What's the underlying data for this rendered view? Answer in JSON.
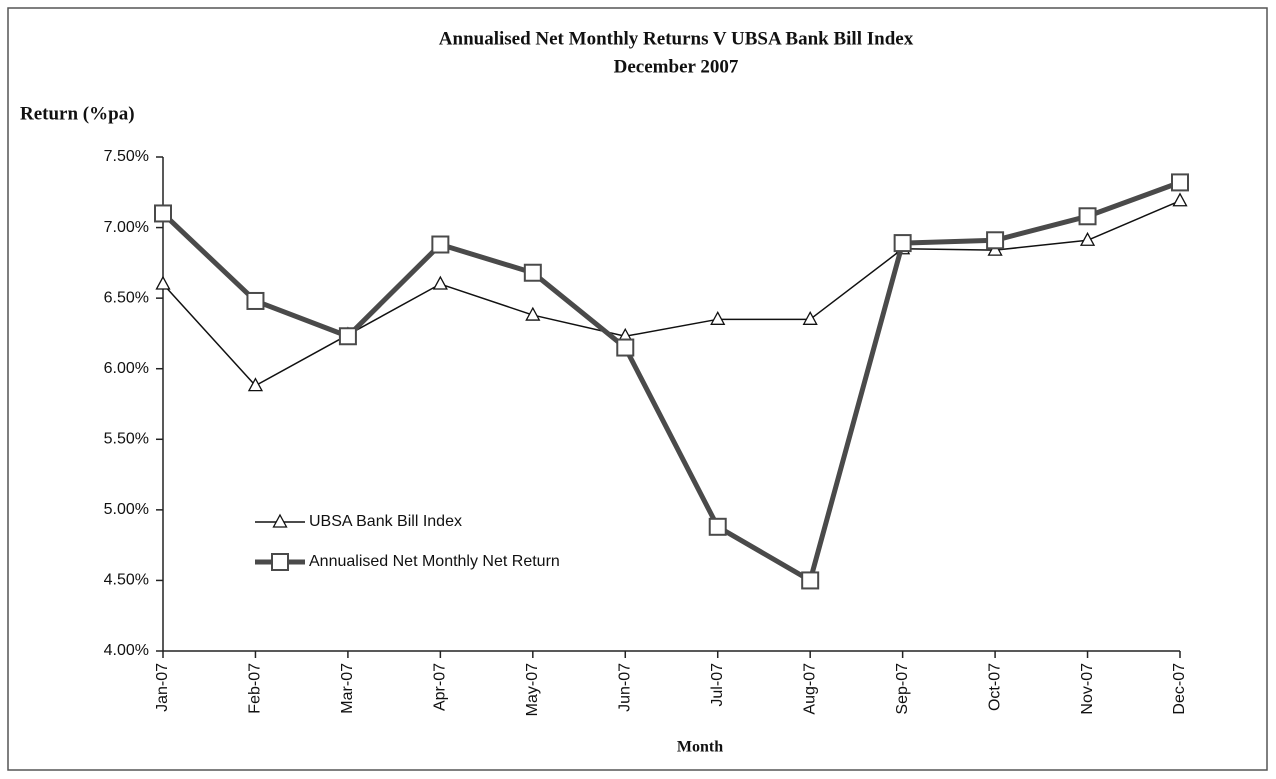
{
  "chart_data": {
    "type": "line",
    "title": "Annualised Net Monthly Returns V UBSA Bank Bill Index",
    "subtitle": "December  2007",
    "y_label": "Return (%pa)",
    "x_label": "Month",
    "categories": [
      "Jan-07",
      "Feb-07",
      "Mar-07",
      "Apr-07",
      "May-07",
      "Jun-07",
      "Jul-07",
      "Aug-07",
      "Sep-07",
      "Oct-07",
      "Nov-07",
      "Dec-07"
    ],
    "series": [
      {
        "name": "UBSA Bank Bill Index",
        "color": "#111111",
        "marker": "triangle",
        "values": [
          6.6,
          5.88,
          6.24,
          6.6,
          6.38,
          6.23,
          6.35,
          6.35,
          6.85,
          6.84,
          6.91,
          7.19
        ]
      },
      {
        "name": "Annualised Net Monthly Net Return",
        "color": "#4a4a4a",
        "marker": "square",
        "values": [
          7.1,
          6.48,
          6.23,
          6.88,
          6.68,
          6.15,
          4.88,
          4.5,
          6.89,
          6.91,
          7.08,
          7.32
        ]
      }
    ],
    "ylim": [
      4.0,
      7.5
    ],
    "yticks": [
      {
        "value": 4.0,
        "label": "4.00%"
      },
      {
        "value": 4.5,
        "label": "4.50%"
      },
      {
        "value": 5.0,
        "label": "5.00%"
      },
      {
        "value": 5.5,
        "label": "5.50%"
      },
      {
        "value": 6.0,
        "label": "6.00%"
      },
      {
        "value": 6.5,
        "label": "6.50%"
      },
      {
        "value": 7.0,
        "label": "7.00%"
      },
      {
        "value": 7.5,
        "label": "7.50%"
      }
    ],
    "grid": false,
    "legend": "lower left"
  }
}
